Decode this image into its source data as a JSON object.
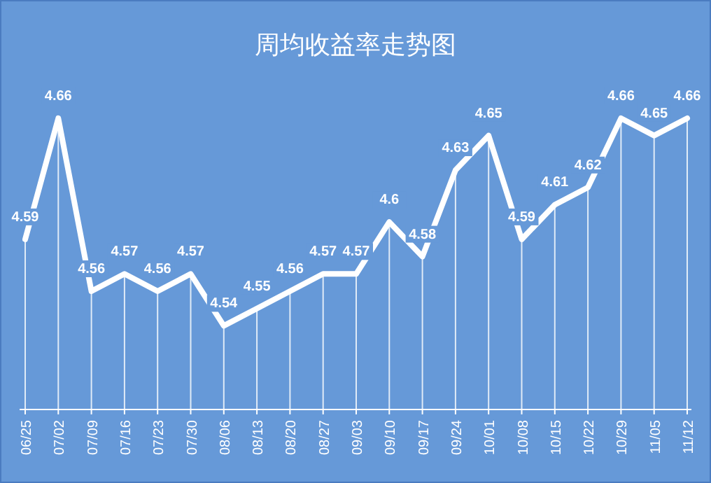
{
  "chart_data": {
    "type": "line",
    "title": "周均收益率走势图",
    "categories": [
      "06/25",
      "07/02",
      "07/09",
      "07/16",
      "07/23",
      "07/30",
      "08/06",
      "08/13",
      "08/20",
      "08/27",
      "09/03",
      "09/10",
      "09/17",
      "09/24",
      "10/01",
      "10/08",
      "10/15",
      "10/22",
      "10/29",
      "11/05",
      "11/12"
    ],
    "series": [
      {
        "color": "#ffffff",
        "values": [
          4.59,
          4.66,
          4.56,
          4.57,
          4.56,
          4.57,
          4.54,
          4.55,
          4.56,
          4.57,
          4.57,
          4.6,
          4.58,
          4.63,
          4.65,
          4.59,
          4.61,
          4.62,
          4.66,
          4.65,
          4.66
        ]
      }
    ],
    "tick_labels": "x",
    "data_labels": true,
    "grid": "x",
    "marker": "none",
    "line_style": "solid"
  }
}
